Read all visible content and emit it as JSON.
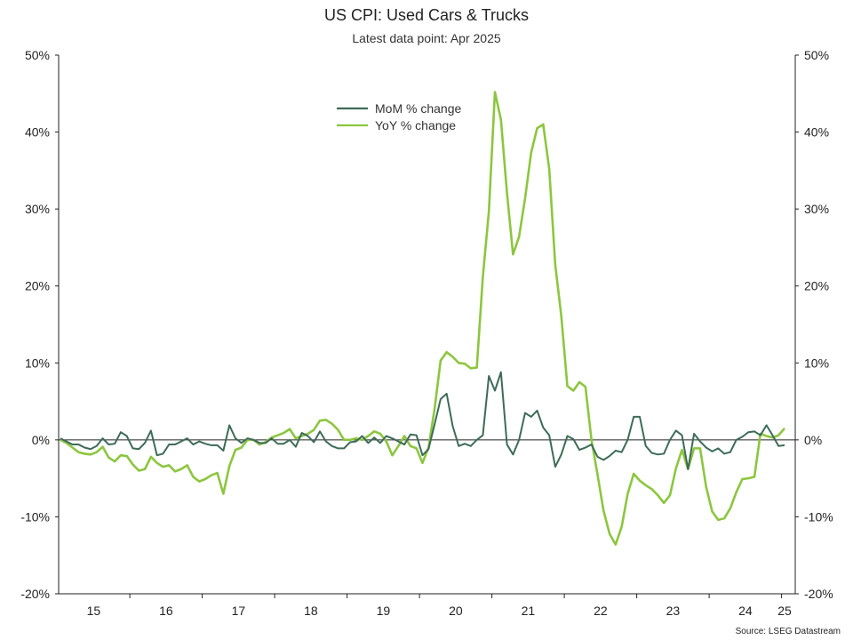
{
  "chart_data": {
    "type": "line",
    "title": "US CPI: Used Cars & Trucks",
    "subtitle": "Latest data point: Apr 2025",
    "source": "Source: LSEG Datastream",
    "x_start": "2015-01",
    "x_end": "2025-04",
    "x_tick_labels": [
      "15",
      "16",
      "17",
      "18",
      "19",
      "20",
      "21",
      "22",
      "23",
      "24",
      "25"
    ],
    "y_left_ticks": [
      "50%",
      "40%",
      "30%",
      "20%",
      "10%",
      "0%",
      "-10%",
      "-20%"
    ],
    "y_right_ticks": [
      "50%",
      "40%",
      "30%",
      "20%",
      "10%",
      "0%",
      "-10%",
      "-20%"
    ],
    "ylim": [
      -20,
      50
    ],
    "grid": false,
    "legend_position": "top-center",
    "series": [
      {
        "name": "MoM % change",
        "color": "#3d6b57",
        "values": [
          0.2,
          -0.2,
          -0.6,
          -0.6,
          -1.0,
          -1.2,
          -0.8,
          0.2,
          -0.6,
          -0.5,
          1.0,
          0.5,
          -1.1,
          -1.2,
          -0.4,
          1.2,
          -2.0,
          -1.8,
          -0.6,
          -0.6,
          -0.2,
          0.2,
          -0.6,
          -0.2,
          -0.5,
          -0.7,
          -0.7,
          -1.4,
          1.9,
          0.2,
          -0.4,
          0.2,
          0.0,
          -0.4,
          -0.4,
          0.2,
          -0.5,
          -0.5,
          0.0,
          -0.9,
          0.9,
          0.5,
          -0.3,
          1.1,
          -0.2,
          -0.8,
          -1.1,
          -1.1,
          -0.3,
          -0.2,
          0.5,
          -0.4,
          0.3,
          -0.4,
          0.5,
          0.2,
          -0.2,
          -0.6,
          0.7,
          0.6,
          -2.0,
          -1.2,
          2.0,
          5.3,
          6.0,
          1.8,
          -0.8,
          -0.5,
          -0.8,
          0.0,
          0.6,
          8.3,
          6.4,
          8.8,
          -0.6,
          -1.9,
          0.0,
          3.5,
          3.0,
          3.8,
          1.6,
          0.6,
          -3.5,
          -1.9,
          0.5,
          0.1,
          -1.3,
          -1.0,
          -0.6,
          -2.2,
          -2.6,
          -2.1,
          -1.4,
          -1.6,
          0.0,
          3.0,
          3.0,
          -0.8,
          -1.7,
          -1.9,
          -1.8,
          0.0,
          1.2,
          0.6,
          -3.8,
          0.8,
          -0.2,
          -1.0,
          -1.5,
          -1.1,
          -1.8,
          -1.6,
          0.0,
          0.4,
          1.0,
          1.1,
          0.6,
          1.9,
          0.6,
          -0.8,
          -0.7
        ]
      },
      {
        "name": "YoY % change",
        "color": "#8cc63f",
        "values": [
          0.0,
          -0.4,
          -1.0,
          -1.6,
          -1.8,
          -1.9,
          -1.6,
          -0.9,
          -2.3,
          -2.8,
          -2.0,
          -2.1,
          -3.2,
          -4.0,
          -3.8,
          -2.2,
          -3.0,
          -3.5,
          -3.3,
          -4.1,
          -3.8,
          -3.3,
          -4.8,
          -5.4,
          -5.1,
          -4.6,
          -4.3,
          -7.0,
          -3.4,
          -1.3,
          -1.0,
          0.0,
          0.0,
          -0.6,
          -0.3,
          0.3,
          0.6,
          0.9,
          1.4,
          0.2,
          0.5,
          0.8,
          1.3,
          2.5,
          2.6,
          2.1,
          1.3,
          0.0,
          0.0,
          0.2,
          0.0,
          0.5,
          1.1,
          0.8,
          -0.2,
          -2.0,
          -0.8,
          0.5,
          -0.8,
          -1.1,
          -3.0,
          -1.0,
          4.0,
          10.3,
          11.4,
          10.8,
          10.0,
          9.9,
          9.3,
          9.4,
          21.2,
          29.7,
          45.2,
          41.6,
          32.1,
          24.1,
          26.4,
          31.4,
          37.3,
          40.5,
          41.0,
          35.2,
          22.7,
          16.1,
          7.0,
          6.4,
          7.5,
          6.9,
          0.0,
          -4.5,
          -9.2,
          -12.2,
          -13.6,
          -11.3,
          -7.0,
          -4.4,
          -5.3,
          -5.9,
          -6.4,
          -7.2,
          -8.2,
          -7.2,
          -3.7,
          -1.3,
          -3.8,
          -1.1,
          -1.1,
          -6.1,
          -9.3,
          -10.4,
          -10.2,
          -8.9,
          -6.8,
          -5.1,
          -5.0,
          -4.8,
          0.8,
          0.5,
          0.3,
          0.6,
          1.5
        ]
      }
    ]
  }
}
